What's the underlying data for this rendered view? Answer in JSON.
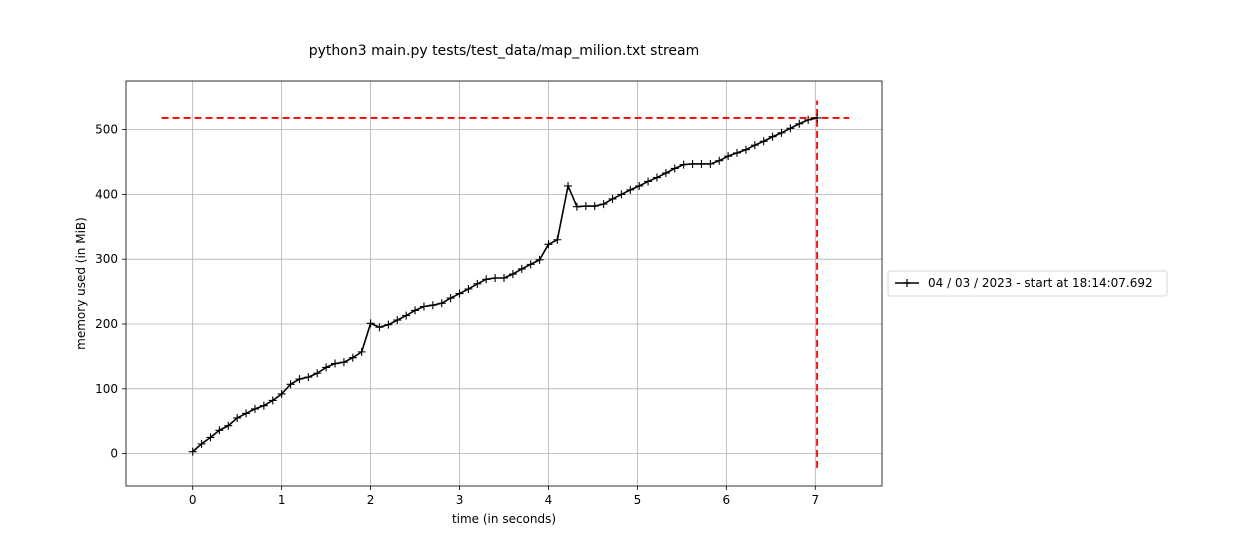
{
  "chart_data": {
    "type": "line",
    "title": "python3 main.py tests/test_data/map_milion.txt stream",
    "xlabel": "time (in seconds)",
    "ylabel": "memory used (in MiB)",
    "xlim": [
      -0.75,
      7.75
    ],
    "ylim": [
      -50,
      575
    ],
    "xticks": [
      0,
      1,
      2,
      3,
      4,
      5,
      6,
      7
    ],
    "yticks": [
      0,
      100,
      200,
      300,
      400,
      500
    ],
    "grid": true,
    "legend_position": "outside-right",
    "series": [
      {
        "name": "04 / 03 / 2023 - start at 18:14:07.692",
        "color": "#000000",
        "marker": "+",
        "x": [
          0.0,
          0.1,
          0.2,
          0.3,
          0.4,
          0.5,
          0.6,
          0.7,
          0.8,
          0.9,
          1.0,
          1.1,
          1.2,
          1.3,
          1.4,
          1.5,
          1.6,
          1.7,
          1.8,
          1.9,
          2.0,
          2.1,
          2.2,
          2.3,
          2.4,
          2.5,
          2.6,
          2.7,
          2.8,
          2.9,
          3.0,
          3.1,
          3.2,
          3.3,
          3.4,
          3.5,
          3.6,
          3.7,
          3.8,
          3.9,
          4.0,
          4.1,
          4.22,
          4.32,
          4.42,
          4.52,
          4.62,
          4.72,
          4.82,
          4.92,
          5.02,
          5.12,
          5.22,
          5.32,
          5.42,
          5.52,
          5.62,
          5.72,
          5.82,
          5.92,
          6.02,
          6.12,
          6.22,
          6.32,
          6.42,
          6.52,
          6.62,
          6.72,
          6.82,
          6.92,
          7.02
        ],
        "y": [
          3,
          15,
          25,
          36,
          43,
          55,
          62,
          69,
          74,
          82,
          92,
          107,
          115,
          118,
          124,
          133,
          139,
          141,
          148,
          157,
          201,
          195,
          199,
          206,
          213,
          221,
          227,
          229,
          232,
          240,
          247,
          254,
          262,
          269,
          271,
          271,
          277,
          285,
          292,
          299,
          323,
          330,
          413,
          381,
          382,
          382,
          385,
          393,
          400,
          407,
          413,
          420,
          426,
          433,
          440,
          446,
          447,
          447,
          447,
          452,
          459,
          464,
          469,
          476,
          482,
          489,
          495,
          502,
          509,
          515,
          518
        ]
      }
    ],
    "reference_lines": {
      "color": "#ff0000",
      "style": "dashed",
      "horizontal": {
        "y": 518,
        "x_range": [
          -0.35,
          7.38
        ]
      },
      "vertical": {
        "x": 7.02,
        "y_range": [
          -22,
          545
        ]
      }
    }
  }
}
